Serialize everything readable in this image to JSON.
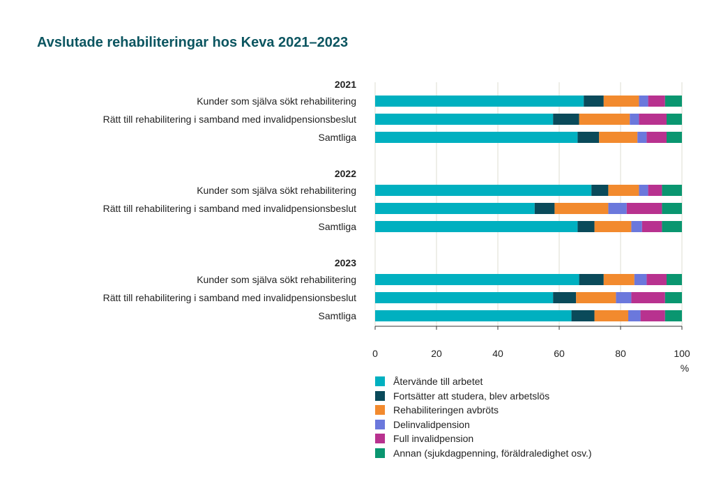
{
  "chart_data": {
    "type": "bar",
    "orientation": "horizontal",
    "stacked": true,
    "title": "Avslutade rehabiliteringar hos Keva 2021–2023",
    "xlabel": "%",
    "xlim": [
      0,
      100
    ],
    "xticks": [
      0,
      20,
      40,
      60,
      80,
      100
    ],
    "grid": true,
    "legend_position": "bottom",
    "series": [
      {
        "name": "Återvände till arbetet",
        "color": "#00b0c0"
      },
      {
        "name": "Fortsätter att studera, blev arbetslös",
        "color": "#0a4a5a"
      },
      {
        "name": "Rehabiliteringen avbröts",
        "color": "#f28a2e"
      },
      {
        "name": "Delinvalidpension",
        "color": "#6b78dc"
      },
      {
        "name": "Full invalidpension",
        "color": "#b8328f"
      },
      {
        "name": "Annan (sjukdagpenning, föräldraledighet osv.)",
        "color": "#0a9670"
      }
    ],
    "groups": [
      {
        "label": "2021",
        "bars": [
          {
            "label": "Kunder som själva sökt rehabilitering",
            "values": [
              68,
              6.5,
              11.5,
              3,
              5.5,
              5.5
            ]
          },
          {
            "label": "Rätt till rehabilitering i samband med invalidpensionsbeslut",
            "values": [
              58,
              8.5,
              16.5,
              3,
              9,
              5
            ]
          },
          {
            "label": "Samtliga",
            "values": [
              66,
              7,
              12.5,
              3,
              6.5,
              5
            ]
          }
        ]
      },
      {
        "label": "2022",
        "bars": [
          {
            "label": "Kunder som själva sökt rehabilitering",
            "values": [
              70.5,
              5.5,
              10,
              3,
              4.5,
              6.5
            ]
          },
          {
            "label": "Rätt till rehabilitering i samband med invalidpensionsbeslut",
            "values": [
              52,
              6.5,
              17.5,
              6,
              11.5,
              6.5
            ]
          },
          {
            "label": "Samtliga",
            "values": [
              66,
              5.5,
              12,
              3.5,
              6.5,
              6.5
            ]
          }
        ]
      },
      {
        "label": "2023",
        "bars": [
          {
            "label": "Kunder som själva sökt rehabilitering",
            "values": [
              66.5,
              8,
              10,
              4,
              6.5,
              5
            ]
          },
          {
            "label": "Rätt till rehabilitering i samband med invalidpensionsbeslut",
            "values": [
              58,
              7.5,
              13,
              5,
              11,
              5.5
            ]
          },
          {
            "label": "Samtliga",
            "values": [
              64,
              7.5,
              11,
              4,
              8,
              5.5
            ]
          }
        ]
      }
    ]
  }
}
